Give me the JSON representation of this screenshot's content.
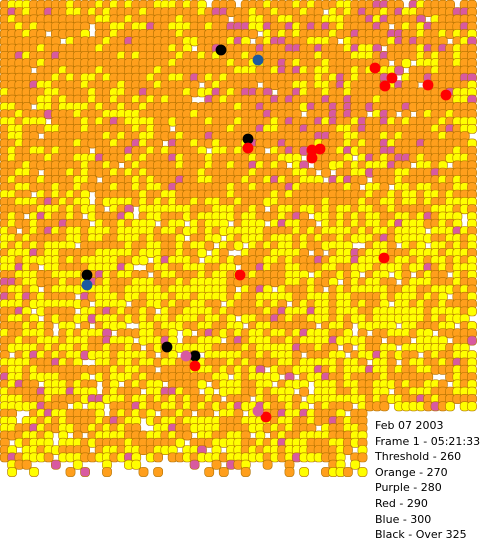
{
  "date": "Feb 07 2003",
  "frame": "Frame 1 - 05:21:33",
  "legend": [
    "Threshold - 260",
    "Orange - 270",
    "Purple - 280",
    "Red - 290",
    "Blue - 300",
    "Black - Over 325"
  ],
  "colors": {
    "background": "#ffffff",
    "threshold": "#ffff00",
    "orange": "#ff9f1c",
    "purple": "#d85aa0",
    "red": "#ff0000",
    "blue": "#1c5aa0",
    "black": "#000000",
    "outline": "#b07000"
  },
  "grid": {
    "cols": 66,
    "rows": 65,
    "cell_spacing_px": 7.3
  }
}
